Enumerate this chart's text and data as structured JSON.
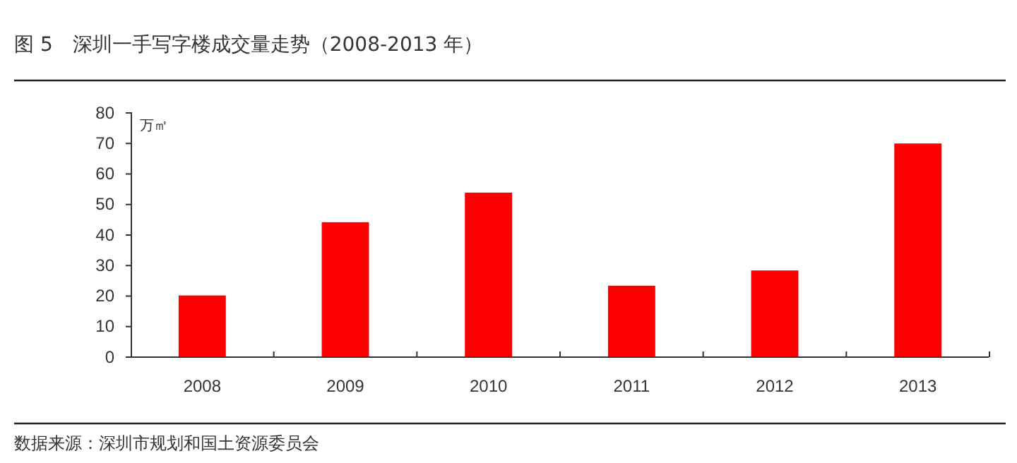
{
  "chart_data": {
    "type": "bar",
    "title": "图 5　深圳一手写字楼成交量走势（2008-2013 年）",
    "ylabel": "万㎡",
    "categories": [
      "2008",
      "2009",
      "2010",
      "2011",
      "2012",
      "2013"
    ],
    "values": [
      20.2,
      44.2,
      53.9,
      23.4,
      28.4,
      70
    ],
    "color": "#ff0000",
    "ylim": [
      0,
      80
    ],
    "yticks": [
      0,
      10,
      20,
      30,
      40,
      50,
      60,
      70,
      80
    ],
    "grid": false,
    "annotations": [
      "数据来源：深圳市规划和国土资源委员会"
    ]
  }
}
